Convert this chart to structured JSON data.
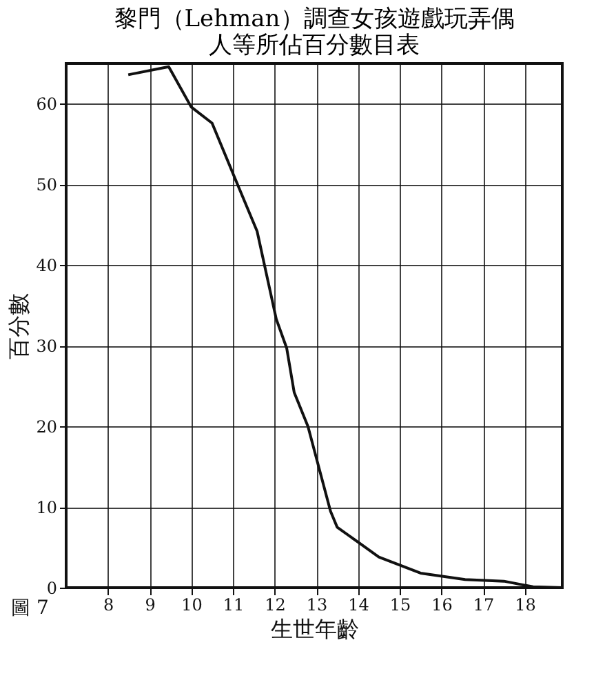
{
  "chart_data": {
    "type": "line",
    "title": [
      "黎門（Lehman）調查女孩遊戲玩弄偶",
      "人等所佔百分數目表"
    ],
    "xlabel": "生世年齡",
    "ylabel": "百分數",
    "annotations": [
      "圖 7"
    ],
    "x": [
      8.49,
      9.46,
      10.0,
      10.5,
      11.07,
      11.58,
      12.04,
      12.29,
      12.47,
      12.8,
      13.34,
      13.5,
      14.04,
      14.5,
      15.5,
      16.57,
      17.5,
      18.2,
      18.9
    ],
    "series": [
      {
        "color": "#111111",
        "values": [
          63.6,
          64.6,
          59.6,
          57.6,
          50.5,
          44.2,
          33.3,
          29.7,
          24.2,
          20,
          9.5,
          7.5,
          5.5,
          3.8,
          1.8,
          1.0,
          0.8,
          0.1,
          0
        ]
      }
    ],
    "xlim": [
      7,
      18.9
    ],
    "xticks": [
      8,
      9,
      10,
      11,
      12,
      13,
      14,
      15,
      16,
      17,
      18
    ],
    "ylim": [
      0,
      65
    ],
    "yticks": [
      0,
      10,
      20,
      30,
      40,
      50,
      60
    ],
    "grid": true,
    "marker": "none",
    "line_style": "solid"
  }
}
